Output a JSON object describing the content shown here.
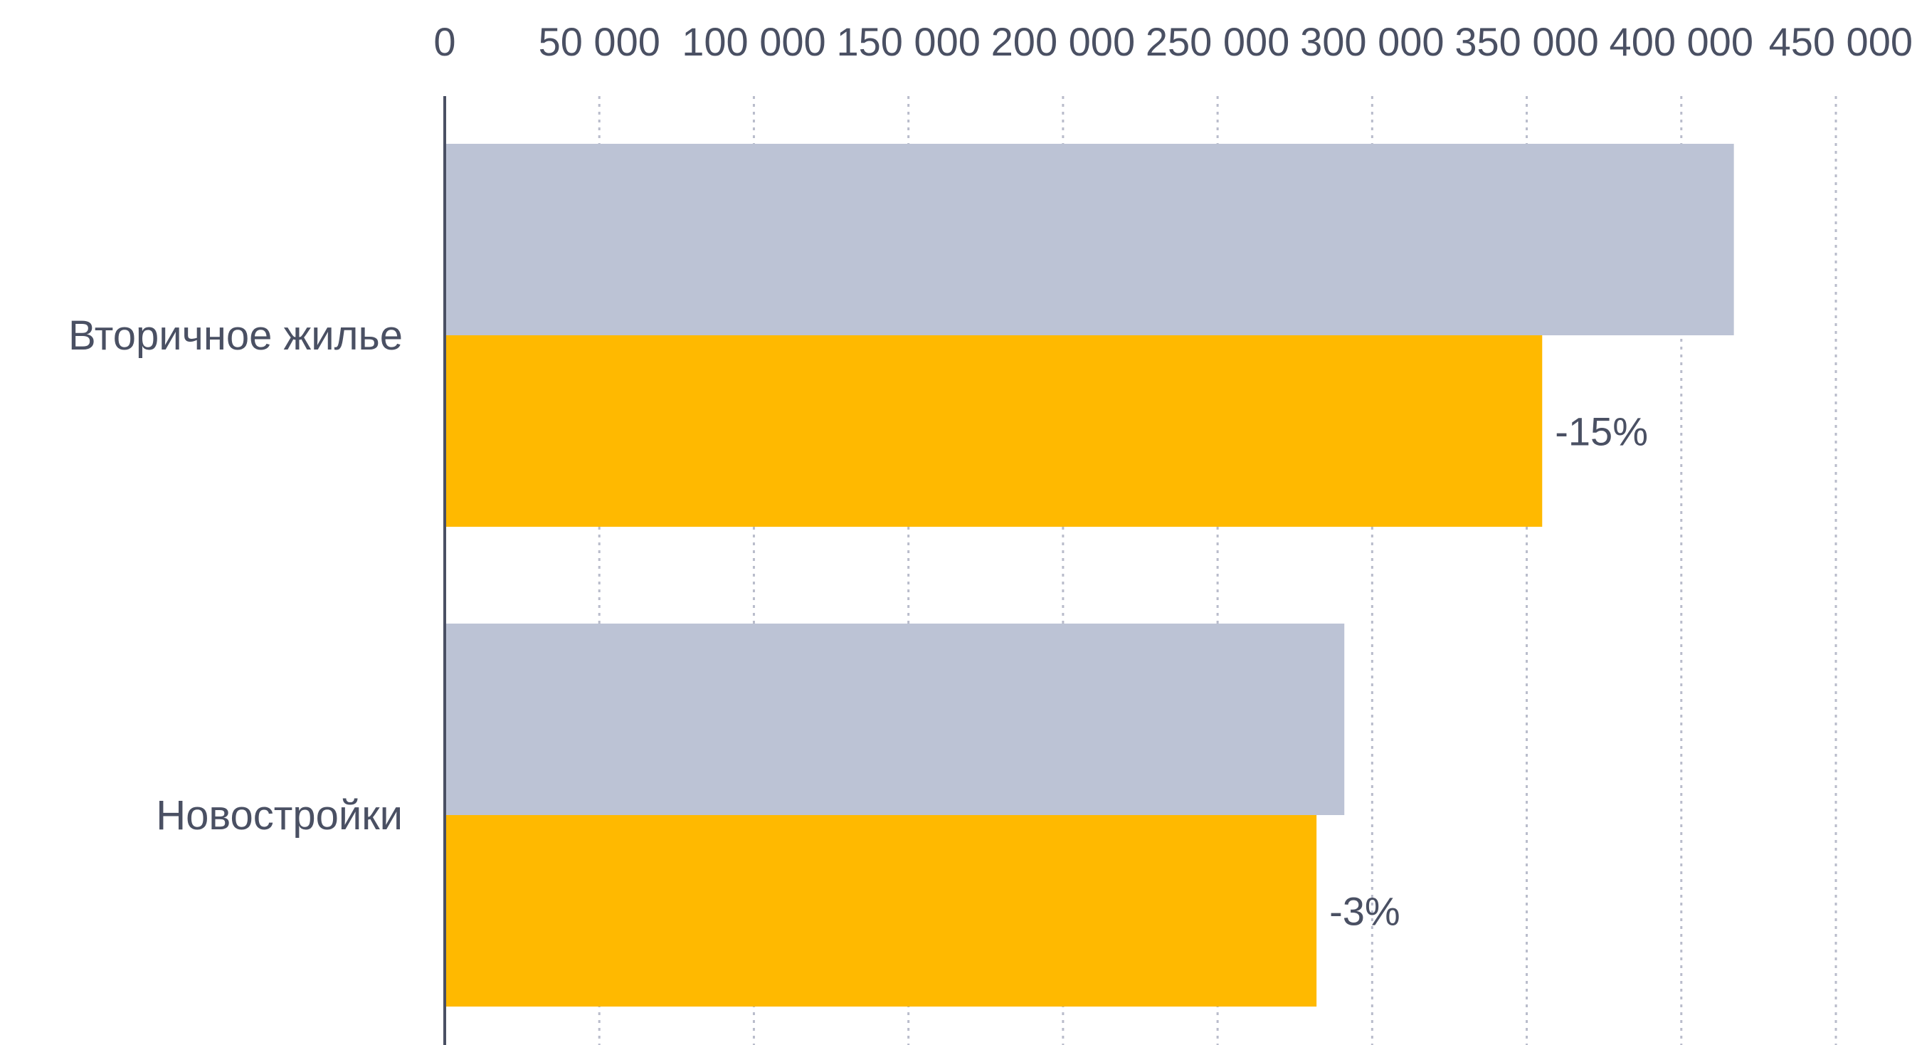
{
  "chart_data": {
    "type": "bar",
    "orientation": "horizontal",
    "categories": [
      "Вторичное жилье",
      "Новостройки"
    ],
    "series": [
      {
        "values": [
          417000,
          291000
        ],
        "color": "#bcc3d5"
      },
      {
        "values": [
          355000,
          282000
        ],
        "color": "#ffb900",
        "data_labels": [
          "-15%",
          "-3%"
        ]
      }
    ],
    "x_ticks": [
      "0",
      "50 000",
      "100 000",
      "150 000",
      "200 000",
      "250 000",
      "300 000",
      "350 000",
      "400 000",
      "450 000"
    ],
    "xlim": [
      0,
      450000
    ],
    "grid": true,
    "x_axis_position": "top",
    "legend": "none"
  }
}
